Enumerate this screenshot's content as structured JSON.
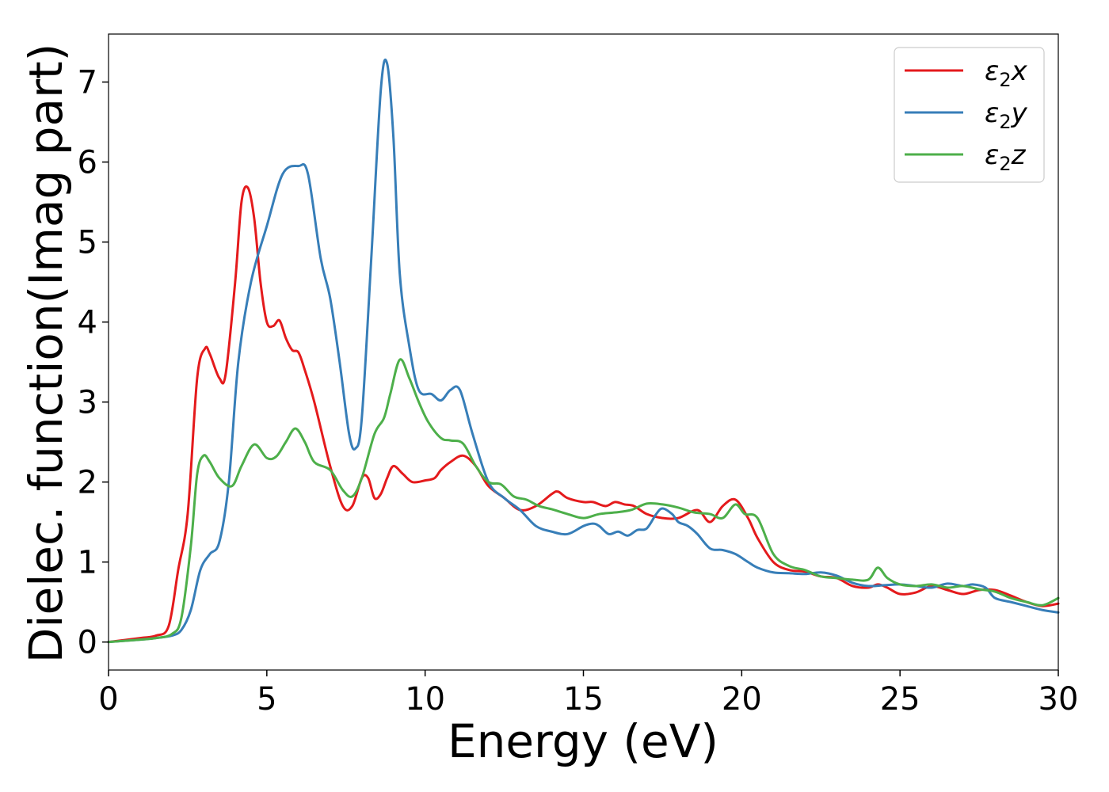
{
  "chart_data": {
    "type": "line",
    "title": "",
    "xlabel": "Energy (eV)",
    "ylabel": "Dielec. function(Imag part)",
    "xlim": [
      0,
      30
    ],
    "ylim": [
      -0.35,
      7.6
    ],
    "xticks": [
      0,
      5,
      10,
      15,
      20,
      25,
      30
    ],
    "yticks": [
      0,
      1,
      2,
      3,
      4,
      5,
      6,
      7
    ],
    "grid": false,
    "legend_position": "top-right",
    "series": [
      {
        "name": "ε₂x",
        "legend_main": "ε",
        "legend_sub": "2",
        "legend_suffix": "x",
        "color": "#e41a1c",
        "x": [
          0,
          1,
          1.5,
          1.9,
          2.2,
          2.5,
          2.8,
          3.05,
          3.2,
          3.5,
          3.7,
          4.0,
          4.2,
          4.4,
          4.6,
          4.8,
          5.0,
          5.2,
          5.4,
          5.6,
          5.8,
          6.0,
          6.2,
          6.5,
          7.0,
          7.4,
          7.7,
          8.0,
          8.2,
          8.4,
          8.6,
          8.8,
          9.0,
          9.3,
          9.6,
          10.0,
          10.3,
          10.5,
          10.8,
          11.2,
          11.6,
          12.0,
          12.5,
          13.0,
          13.5,
          14.0,
          14.2,
          14.5,
          15.0,
          15.3,
          15.7,
          16.0,
          16.3,
          16.6,
          17.0,
          17.5,
          18.0,
          18.6,
          19.0,
          19.4,
          19.8,
          20.2,
          20.5,
          21.0,
          21.5,
          22.0,
          22.5,
          23.0,
          23.5,
          24.0,
          24.3,
          24.6,
          25.0,
          25.5,
          26.0,
          26.5,
          27.0,
          27.5,
          28.0,
          28.5,
          29.0,
          29.5,
          30
        ],
        "y": [
          0,
          0.05,
          0.08,
          0.2,
          0.9,
          1.6,
          3.3,
          3.67,
          3.6,
          3.3,
          3.35,
          4.5,
          5.5,
          5.68,
          5.3,
          4.5,
          4.0,
          3.95,
          4.02,
          3.8,
          3.65,
          3.62,
          3.4,
          3.0,
          2.2,
          1.7,
          1.7,
          2.05,
          2.05,
          1.8,
          1.85,
          2.05,
          2.2,
          2.1,
          2.0,
          2.02,
          2.05,
          2.15,
          2.25,
          2.33,
          2.2,
          1.95,
          1.8,
          1.65,
          1.7,
          1.85,
          1.88,
          1.8,
          1.75,
          1.75,
          1.7,
          1.75,
          1.72,
          1.7,
          1.6,
          1.55,
          1.55,
          1.65,
          1.5,
          1.7,
          1.78,
          1.55,
          1.3,
          1.0,
          0.9,
          0.88,
          0.82,
          0.8,
          0.7,
          0.68,
          0.72,
          0.68,
          0.6,
          0.62,
          0.7,
          0.65,
          0.6,
          0.65,
          0.65,
          0.58,
          0.5,
          0.45,
          0.48
        ]
      },
      {
        "name": "ε₂y",
        "legend_main": "ε",
        "legend_sub": "2",
        "legend_suffix": "y",
        "color": "#377eb8",
        "x": [
          0,
          1,
          1.5,
          2.0,
          2.3,
          2.6,
          2.9,
          3.2,
          3.5,
          3.8,
          4.1,
          4.5,
          5.0,
          5.5,
          6.0,
          6.3,
          6.7,
          7.0,
          7.3,
          7.6,
          7.8,
          8.0,
          8.3,
          8.6,
          8.8,
          9.0,
          9.2,
          9.5,
          9.8,
          10.2,
          10.5,
          10.8,
          11.1,
          11.5,
          12.0,
          12.5,
          13.0,
          13.5,
          14.0,
          14.5,
          15.0,
          15.3,
          15.5,
          15.8,
          16.1,
          16.4,
          16.7,
          17.0,
          17.3,
          17.5,
          17.8,
          18.0,
          18.3,
          18.6,
          19.0,
          19.4,
          19.8,
          20.2,
          20.5,
          21.0,
          21.5,
          22.0,
          22.5,
          23.0,
          23.5,
          24.0,
          24.5,
          25.0,
          25.5,
          26.0,
          26.5,
          27.0,
          27.3,
          27.7,
          28.0,
          28.5,
          29.0,
          29.5,
          30
        ],
        "y": [
          0,
          0.03,
          0.05,
          0.08,
          0.15,
          0.4,
          0.9,
          1.1,
          1.25,
          2.0,
          3.5,
          4.5,
          5.2,
          5.85,
          5.95,
          5.85,
          4.8,
          4.3,
          3.5,
          2.6,
          2.42,
          2.8,
          4.8,
          6.9,
          7.23,
          6.3,
          4.6,
          3.7,
          3.15,
          3.1,
          3.02,
          3.15,
          3.15,
          2.6,
          2.0,
          1.8,
          1.65,
          1.45,
          1.38,
          1.35,
          1.45,
          1.48,
          1.45,
          1.35,
          1.38,
          1.33,
          1.4,
          1.42,
          1.6,
          1.67,
          1.6,
          1.5,
          1.45,
          1.35,
          1.17,
          1.15,
          1.1,
          1.0,
          0.93,
          0.87,
          0.86,
          0.85,
          0.87,
          0.83,
          0.74,
          0.7,
          0.71,
          0.72,
          0.7,
          0.68,
          0.73,
          0.7,
          0.72,
          0.68,
          0.55,
          0.5,
          0.45,
          0.4,
          0.37
        ]
      },
      {
        "name": "ε₂z",
        "legend_main": "ε",
        "legend_sub": "2",
        "legend_suffix": "z",
        "color": "#4daf4a",
        "x": [
          0,
          1,
          1.5,
          2.0,
          2.3,
          2.6,
          2.8,
          3.0,
          3.2,
          3.5,
          3.9,
          4.2,
          4.6,
          5.0,
          5.3,
          5.6,
          5.9,
          6.2,
          6.5,
          7.0,
          7.4,
          7.7,
          8.0,
          8.4,
          8.7,
          8.9,
          9.2,
          9.5,
          9.8,
          10.1,
          10.5,
          10.8,
          11.2,
          11.6,
          12.0,
          12.4,
          12.8,
          13.2,
          13.6,
          14.0,
          14.5,
          15.0,
          15.5,
          16.0,
          16.5,
          17.0,
          17.5,
          18.0,
          18.5,
          19.0,
          19.4,
          19.8,
          20.1,
          20.5,
          21.0,
          21.5,
          22.0,
          22.5,
          23.0,
          23.5,
          24.0,
          24.3,
          24.6,
          25.0,
          25.5,
          26.0,
          26.5,
          27.0,
          27.5,
          28.0,
          28.5,
          29.0,
          29.5,
          30
        ],
        "y": [
          0,
          0.03,
          0.05,
          0.1,
          0.3,
          1.2,
          2.1,
          2.33,
          2.25,
          2.05,
          1.95,
          2.2,
          2.47,
          2.3,
          2.32,
          2.5,
          2.67,
          2.5,
          2.25,
          2.15,
          1.9,
          1.82,
          2.05,
          2.6,
          2.8,
          3.1,
          3.53,
          3.3,
          3.0,
          2.75,
          2.55,
          2.52,
          2.48,
          2.2,
          2.0,
          1.97,
          1.82,
          1.78,
          1.7,
          1.66,
          1.6,
          1.55,
          1.6,
          1.62,
          1.65,
          1.73,
          1.72,
          1.68,
          1.62,
          1.6,
          1.55,
          1.72,
          1.6,
          1.55,
          1.1,
          0.95,
          0.9,
          0.82,
          0.8,
          0.78,
          0.78,
          0.93,
          0.8,
          0.72,
          0.7,
          0.72,
          0.68,
          0.7,
          0.66,
          0.63,
          0.55,
          0.5,
          0.46,
          0.55
        ]
      }
    ]
  }
}
